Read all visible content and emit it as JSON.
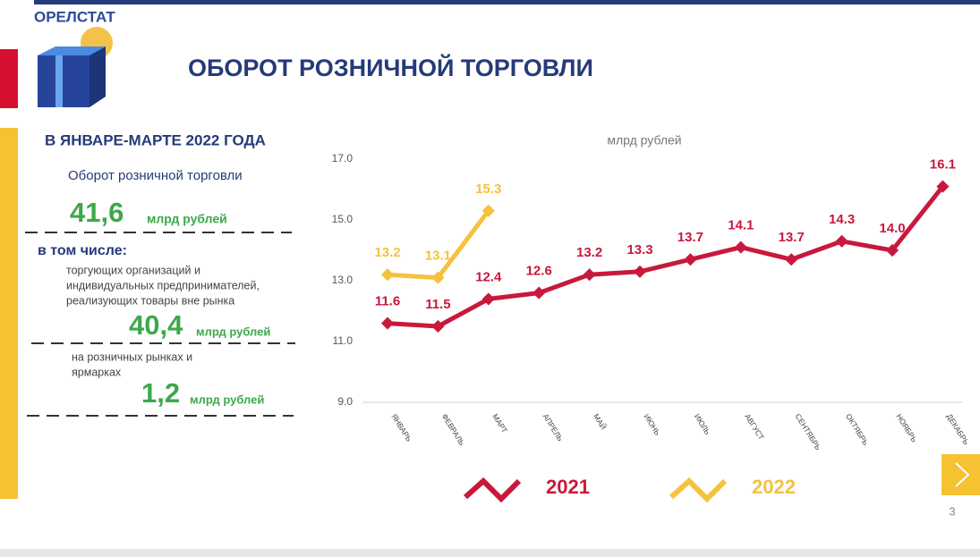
{
  "header": {
    "brand": "ОРЕЛСТАТ",
    "title": "ОБОРОТ РОЗНИЧНОЙ ТОРГОВЛИ"
  },
  "panel": {
    "period": "В ЯНВАРЕ-МАРТЕ 2022 ГОДА",
    "total_label": "Оборот розничной торговли",
    "total_value": "41,6",
    "total_unit": "млрд рублей",
    "including": "в том числе:",
    "outside_lines": [
      "торгующих организаций и",
      "индивидуальных предпринимателей,",
      "реализующих товары вне рынка"
    ],
    "outside_value": "40,4",
    "outside_unit": "млрд рублей",
    "markets_lines": [
      "на розничных рынках и",
      "ярмарках"
    ],
    "markets_value": "1,2",
    "markets_unit": "млрд рублей"
  },
  "page_number": "3",
  "chart_data": {
    "type": "line",
    "subtitle": "млрд рублей",
    "categories": [
      "ЯНВАРЬ",
      "ФЕВРАЛЬ",
      "МАРТ",
      "АПРЕЛЬ",
      "МАЙ",
      "ИЮНЬ",
      "ИЮЛЬ",
      "АВГУСТ",
      "СЕНТЯБРЬ",
      "ОКТЯБРЬ",
      "НОЯБРЬ",
      "ДЕКАБРЬ"
    ],
    "series": [
      {
        "name": "2021",
        "color": "#c8193c",
        "values": [
          11.6,
          11.5,
          12.4,
          12.6,
          13.2,
          13.3,
          13.7,
          14.1,
          13.7,
          14.3,
          14.0,
          16.1
        ],
        "value_labels": [
          "11.6",
          "11.5",
          "12.4",
          "12.6",
          "13.2",
          "13.3",
          "13.7",
          "14.1",
          "13.7",
          "14.3",
          "14.0",
          "16.1"
        ]
      },
      {
        "name": "2022",
        "color": "#f4c23e",
        "values": [
          13.2,
          13.1,
          15.3,
          null,
          null,
          null,
          null,
          null,
          null,
          null,
          null,
          null
        ],
        "value_labels": [
          "13.2",
          "13.1",
          "15.3",
          null,
          null,
          null,
          null,
          null,
          null,
          null,
          null,
          null
        ]
      }
    ],
    "ylim": [
      9,
      17
    ],
    "yticks": [
      {
        "value": 9,
        "label": "9.0"
      },
      {
        "value": 11,
        "label": "11.0"
      },
      {
        "value": 13,
        "label": "13.0"
      },
      {
        "value": 15,
        "label": "15.0"
      },
      {
        "value": 17,
        "label": "17.0"
      }
    ],
    "grid": false
  }
}
